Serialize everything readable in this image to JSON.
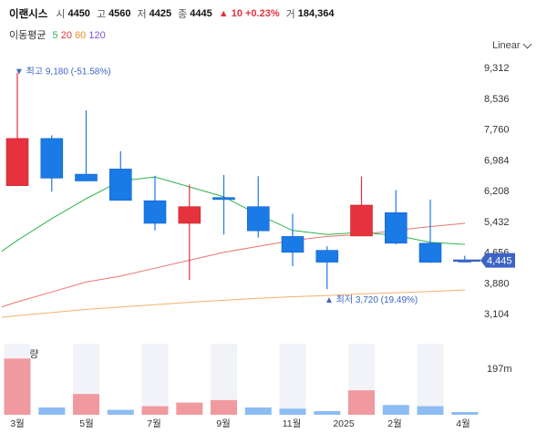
{
  "header": {
    "name": "이랜시스",
    "open_label": "시",
    "open": "4450",
    "high_label": "고",
    "high": "4560",
    "low_label": "저",
    "low": "4425",
    "close_label": "종",
    "close": "4445",
    "change": "▲ 10 +0.23%",
    "volume_label": "거",
    "volume": "184,364"
  },
  "ma": {
    "label": "이동평균",
    "p5": "5",
    "p20": "20",
    "p60": "60",
    "p120": "120"
  },
  "scale_label": "Linear",
  "colors": {
    "up": "#e5323d",
    "down": "#1a7ae6",
    "ma5": "#2fb34a",
    "ma20": "#e8756f",
    "ma60": "#f3b26b",
    "price_tag": "#3d63c4"
  },
  "chart_data": {
    "type": "candlestick",
    "y_ticks": [
      9312,
      8536,
      7760,
      6984,
      6208,
      5432,
      4656,
      3880,
      3104
    ],
    "ylim": [
      2900,
      9600
    ],
    "x_labels": [
      "3월",
      "5월",
      "7월",
      "9월",
      "11월",
      "2025",
      "2월",
      "4월"
    ],
    "candles": [
      {
        "o": 6330,
        "h": 9180,
        "l": 6330,
        "c": 7520
      },
      {
        "o": 7520,
        "h": 7600,
        "l": 6180,
        "c": 6520
      },
      {
        "o": 6620,
        "h": 8230,
        "l": 6440,
        "c": 6450
      },
      {
        "o": 6750,
        "h": 7200,
        "l": 5970,
        "c": 5960
      },
      {
        "o": 5950,
        "h": 6580,
        "l": 5200,
        "c": 5380
      },
      {
        "o": 5380,
        "h": 6360,
        "l": 3950,
        "c": 5800
      },
      {
        "o": 6030,
        "h": 6600,
        "l": 5100,
        "c": 5980
      },
      {
        "o": 5800,
        "h": 6570,
        "l": 5020,
        "c": 5190
      },
      {
        "o": 5050,
        "h": 5620,
        "l": 4300,
        "c": 4650
      },
      {
        "o": 4700,
        "h": 4800,
        "l": 3720,
        "c": 4400
      },
      {
        "o": 5060,
        "h": 6560,
        "l": 5060,
        "c": 5840
      },
      {
        "o": 5650,
        "h": 6220,
        "l": 4850,
        "c": 4880
      },
      {
        "o": 4880,
        "h": 5980,
        "l": 4380,
        "c": 4400
      },
      {
        "o": 4450,
        "h": 4560,
        "l": 4425,
        "c": 4445
      }
    ],
    "ma5": [
      4950,
      5500,
      6000,
      6450,
      6550,
      6300,
      6050,
      5600,
      5200,
      5100,
      5150,
      5080,
      4900,
      4850
    ],
    "ma20": [
      3400,
      3650,
      3900,
      4050,
      4250,
      4450,
      4650,
      4800,
      4950,
      5050,
      5100,
      5200,
      5300,
      5380
    ],
    "ma60": [
      3050,
      3130,
      3210,
      3270,
      3330,
      3390,
      3440,
      3490,
      3530,
      3560,
      3600,
      3630,
      3660,
      3700
    ],
    "volume_ratio": [
      0.46,
      0.06,
      0.17,
      0.04,
      0.07,
      0.1,
      0.12,
      0.06,
      0.05,
      0.03,
      0.2,
      0.08,
      0.07,
      0.02
    ],
    "volume_up": [
      true,
      false,
      true,
      false,
      true,
      true,
      true,
      false,
      false,
      false,
      true,
      false,
      false,
      false
    ],
    "volume_tick": "197m",
    "annotation_high": "▼ 최고 9,180 (-51.58%)",
    "annotation_low": "▲ 최저 3,720 (19.49%)",
    "high_value": 9180,
    "low_value": 3720,
    "current_value": 4445,
    "current_label": "4,445"
  },
  "volume_title": "거래량"
}
